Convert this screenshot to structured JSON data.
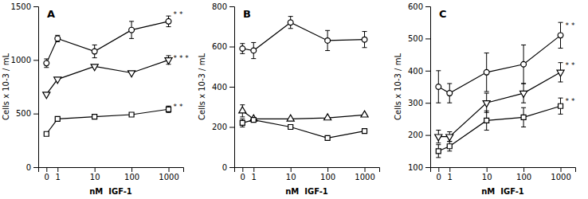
{
  "chart_data": [
    {
      "type": "line",
      "title": "A",
      "x_label": "nM  IGF-1",
      "y_label": "Cells x 10-3 / mL",
      "log": "x",
      "color": "black",
      "x": [
        0.5,
        1,
        10,
        100,
        1000
      ],
      "xlim": [
        0.3,
        2500
      ],
      "xticks": [
        {
          "value": 0.5,
          "label": "0"
        },
        1,
        10,
        100,
        1000
      ],
      "ylim": [
        0,
        1500
      ],
      "yticks": [
        0,
        500,
        1000,
        1500
      ],
      "series": [
        {
          "marker": "circle",
          "values": [
            970,
            1200,
            1080,
            1280,
            1360
          ],
          "errors": [
            40,
            30,
            60,
            80,
            50
          ]
        },
        {
          "marker": "triangle-down",
          "values": [
            680,
            820,
            940,
            880,
            1000
          ],
          "errors": [
            0,
            0,
            0,
            0,
            40
          ]
        },
        {
          "marker": "square",
          "values": [
            310,
            450,
            470,
            490,
            540
          ],
          "errors": [
            0,
            0,
            0,
            0,
            30
          ]
        }
      ],
      "annotations": [
        {
          "text": "* *",
          "x": 1000,
          "y": 1420
        },
        {
          "text": "* * *",
          "x": 1000,
          "y": 1015
        },
        {
          "text": "* *",
          "x": 1000,
          "y": 560
        }
      ]
    },
    {
      "type": "line",
      "title": "B",
      "x_label": "nM  IGF-1",
      "y_label": "Cells x 10-3 / mL",
      "log": "x",
      "color": "black",
      "x": [
        0.5,
        1,
        10,
        100,
        1000
      ],
      "xlim": [
        0.3,
        2500
      ],
      "xticks": [
        {
          "value": 0.5,
          "label": "0"
        },
        1,
        10,
        100,
        1000
      ],
      "ylim": [
        0,
        800
      ],
      "yticks": [
        0,
        200,
        400,
        600,
        800
      ],
      "series": [
        {
          "marker": "circle",
          "values": [
            590,
            580,
            720,
            630,
            635
          ],
          "errors": [
            25,
            40,
            30,
            50,
            40
          ]
        },
        {
          "marker": "triangle-up",
          "values": [
            280,
            240,
            240,
            245,
            260
          ],
          "errors": [
            30,
            0,
            0,
            0,
            0
          ]
        },
        {
          "marker": "square",
          "values": [
            220,
            235,
            200,
            145,
            180
          ],
          "errors": [
            20,
            0,
            0,
            0,
            0
          ]
        }
      ]
    },
    {
      "type": "line",
      "title": "C",
      "x_label": "nM  IGF-1",
      "y_label": "Cells x 10-3 / mL",
      "log": "x",
      "color": "black",
      "x": [
        0.5,
        1,
        10,
        100,
        1000
      ],
      "xlim": [
        0.3,
        2500
      ],
      "xticks": [
        {
          "value": 0.5,
          "label": "0"
        },
        1,
        10,
        100,
        1000
      ],
      "ylim": [
        100,
        600
      ],
      "yticks": [
        100,
        200,
        300,
        400,
        500,
        600
      ],
      "series": [
        {
          "marker": "circle",
          "values": [
            350,
            330,
            395,
            420,
            510
          ],
          "errors": [
            50,
            30,
            60,
            60,
            40
          ]
        },
        {
          "marker": "triangle-down",
          "values": [
            195,
            195,
            300,
            330,
            395
          ],
          "errors": [
            20,
            15,
            30,
            30,
            30
          ]
        },
        {
          "marker": "square",
          "values": [
            150,
            165,
            245,
            255,
            290
          ],
          "errors": [
            20,
            15,
            30,
            30,
            25
          ]
        }
      ],
      "annotations": [
        {
          "text": "* *",
          "x": 1000,
          "y": 540
        },
        {
          "text": "* *",
          "x": 1000,
          "y": 415
        },
        {
          "text": "* *",
          "x": 1000,
          "y": 305
        }
      ]
    }
  ]
}
